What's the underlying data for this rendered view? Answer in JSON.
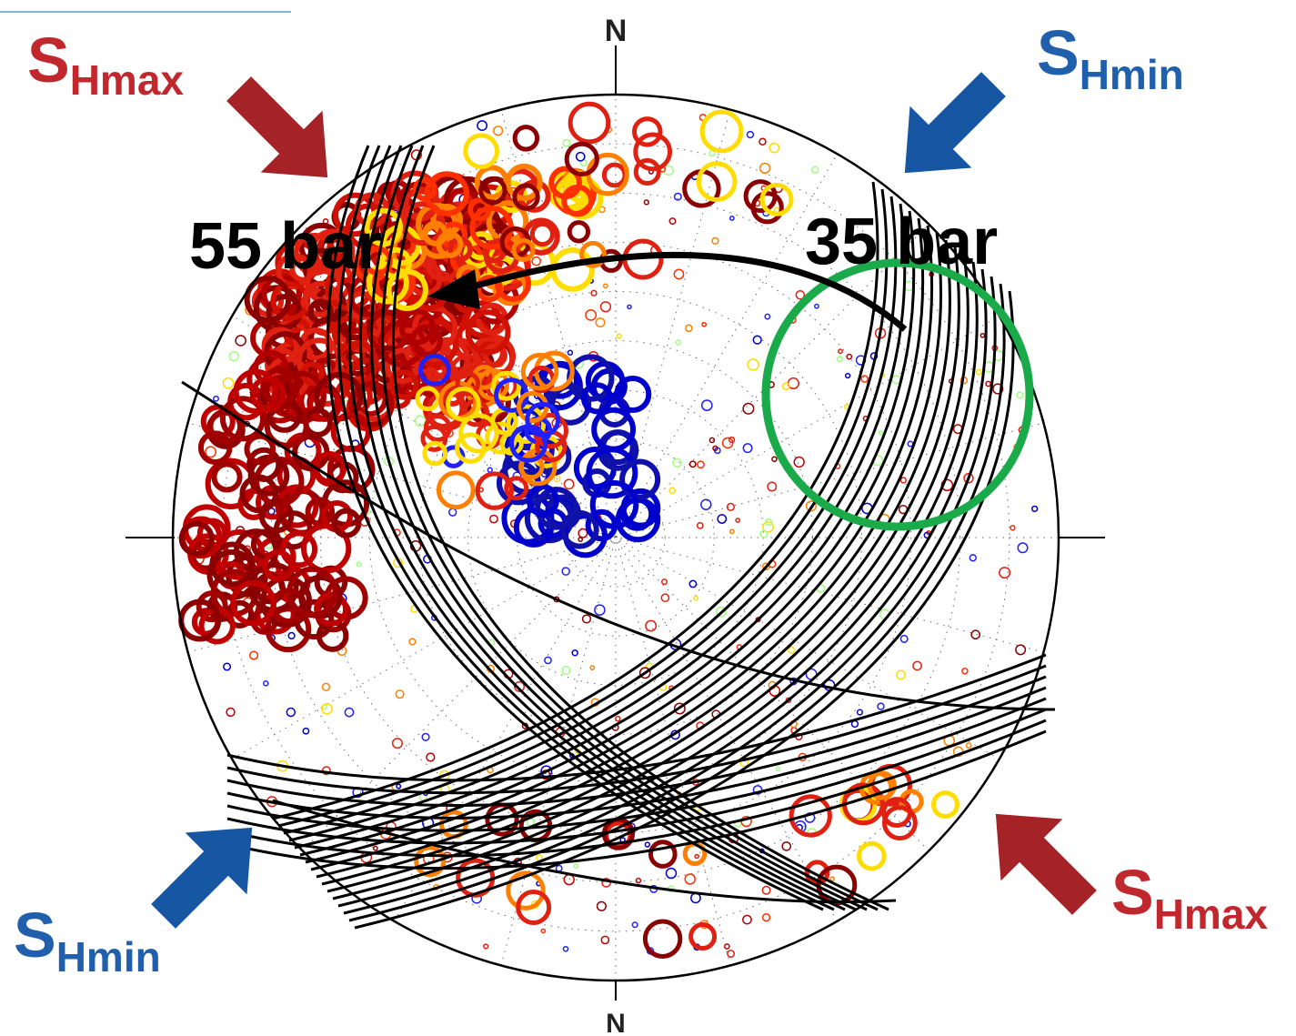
{
  "north_labels": {
    "top": "N",
    "bottom": "N"
  },
  "stress_labels": {
    "shmax_top_left": {
      "main": "S",
      "sub": "Hmax",
      "color": "#c0282d"
    },
    "shmin_top_right": {
      "main": "S",
      "sub": "Hmin",
      "color": "#1f5fab"
    },
    "shmin_bottom_left": {
      "main": "S",
      "sub": "Hmin",
      "color": "#1f5fab"
    },
    "shmax_bottom_right": {
      "main": "S",
      "sub": "Hmax",
      "color": "#c0282d"
    }
  },
  "pressure_labels": {
    "from": "35 bar",
    "to": "55 bar"
  },
  "colors": {
    "shmax_arrow": "#a52326",
    "shmin_arrow": "#1656a3",
    "highlight_circle": "#1aaa4a",
    "fracture_traces": "#000000",
    "pressure_arrow": "#000000"
  },
  "marker_palette": [
    "#8b0000",
    "#c00000",
    "#e02010",
    "#ff3000",
    "#ff8000",
    "#ffdd00",
    "#0000cc",
    "#2020ff",
    "#a0ff80"
  ]
}
